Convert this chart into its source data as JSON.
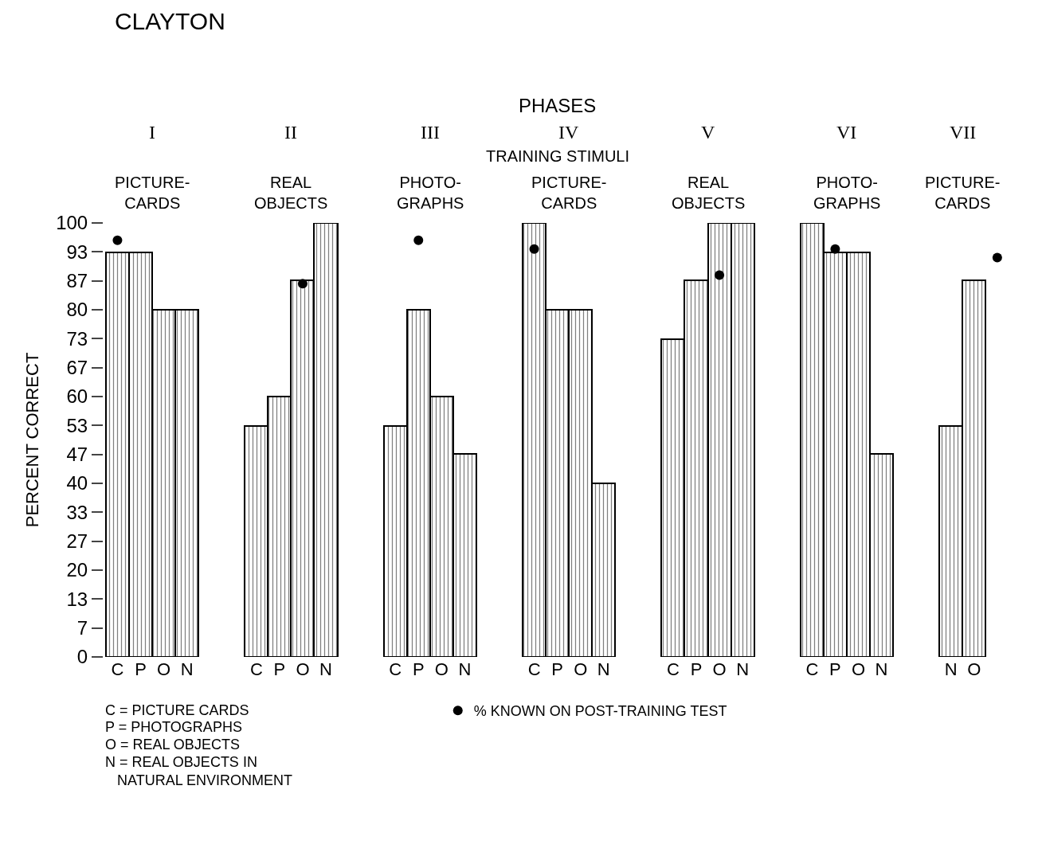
{
  "chart_data": {
    "type": "bar",
    "title": "CLAYTON",
    "ylabel": "PERCENT CORRECT",
    "categories": [
      "C",
      "P",
      "O",
      "N",
      null,
      null,
      "C",
      "P",
      "O",
      "N",
      null,
      null,
      "C",
      "P",
      "O",
      "N",
      null,
      null,
      "C",
      "P",
      "O",
      "N",
      null,
      null,
      "C",
      "P",
      "O",
      "N",
      null,
      null,
      "C",
      "P",
      "O",
      "N",
      null,
      null,
      "N",
      "O",
      null
    ],
    "series": [
      {
        "color": "#000000",
        "values": [
          93.3,
          93.3,
          80,
          80,
          null,
          null,
          53.3,
          60,
          86.7,
          100,
          null,
          null,
          53.3,
          80,
          60,
          46.7,
          null,
          null,
          100,
          80,
          80,
          40,
          null,
          null,
          73.3,
          86.7,
          100,
          100,
          null,
          null,
          100,
          93.3,
          93.3,
          46.7,
          null,
          null,
          53.3,
          86.7,
          null
        ]
      },
      {
        "type": "scatter",
        "name": "% KNOWN ON POST-TRAINING TEST",
        "color": "#000000",
        "values": [
          96,
          null,
          null,
          null,
          null,
          null,
          null,
          null,
          86,
          null,
          null,
          null,
          null,
          96,
          null,
          null,
          null,
          null,
          94,
          null,
          null,
          null,
          null,
          null,
          null,
          null,
          88,
          null,
          null,
          null,
          null,
          94,
          null,
          null,
          null,
          null,
          null,
          null,
          92
        ]
      }
    ],
    "marker": "circle",
    "ylim": [
      0,
      100
    ],
    "yticks": [
      0,
      {
        "value": 6.667,
        "label": "7"
      },
      {
        "value": 13.333,
        "label": "13"
      },
      20,
      {
        "value": 26.667,
        "label": "27"
      },
      {
        "value": 33.333,
        "label": "33"
      },
      40,
      {
        "value": 46.667,
        "label": "47"
      },
      {
        "value": 53.333,
        "label": "53"
      },
      60,
      {
        "value": 66.667,
        "label": "67"
      },
      {
        "value": 73.333,
        "label": "73"
      },
      80,
      {
        "value": 86.667,
        "label": "87"
      },
      {
        "value": 93.333,
        "label": "93"
      },
      100
    ],
    "legend": "bottom",
    "annotations": [
      "PHASES",
      "I",
      "II",
      "III",
      "IV",
      "V",
      "VI",
      "VII",
      "TRAINING STIMULI",
      "PICTURE-\nCARDS",
      "REAL\nOBJECTS",
      "PHOTO-\nGRAPHS",
      "PICTURE-\nCARDS",
      "REAL\nOBJECTS",
      "PHOTO-\nGRAPHS",
      "PICTURE-\nCARDS",
      "C = PICTURE CARDS",
      "P = PHOTOGRAPHS",
      "O = REAL OBJECTS",
      "N = REAL OBJECTS IN\n   NATURAL ENVIRONMENT"
    ]
  }
}
